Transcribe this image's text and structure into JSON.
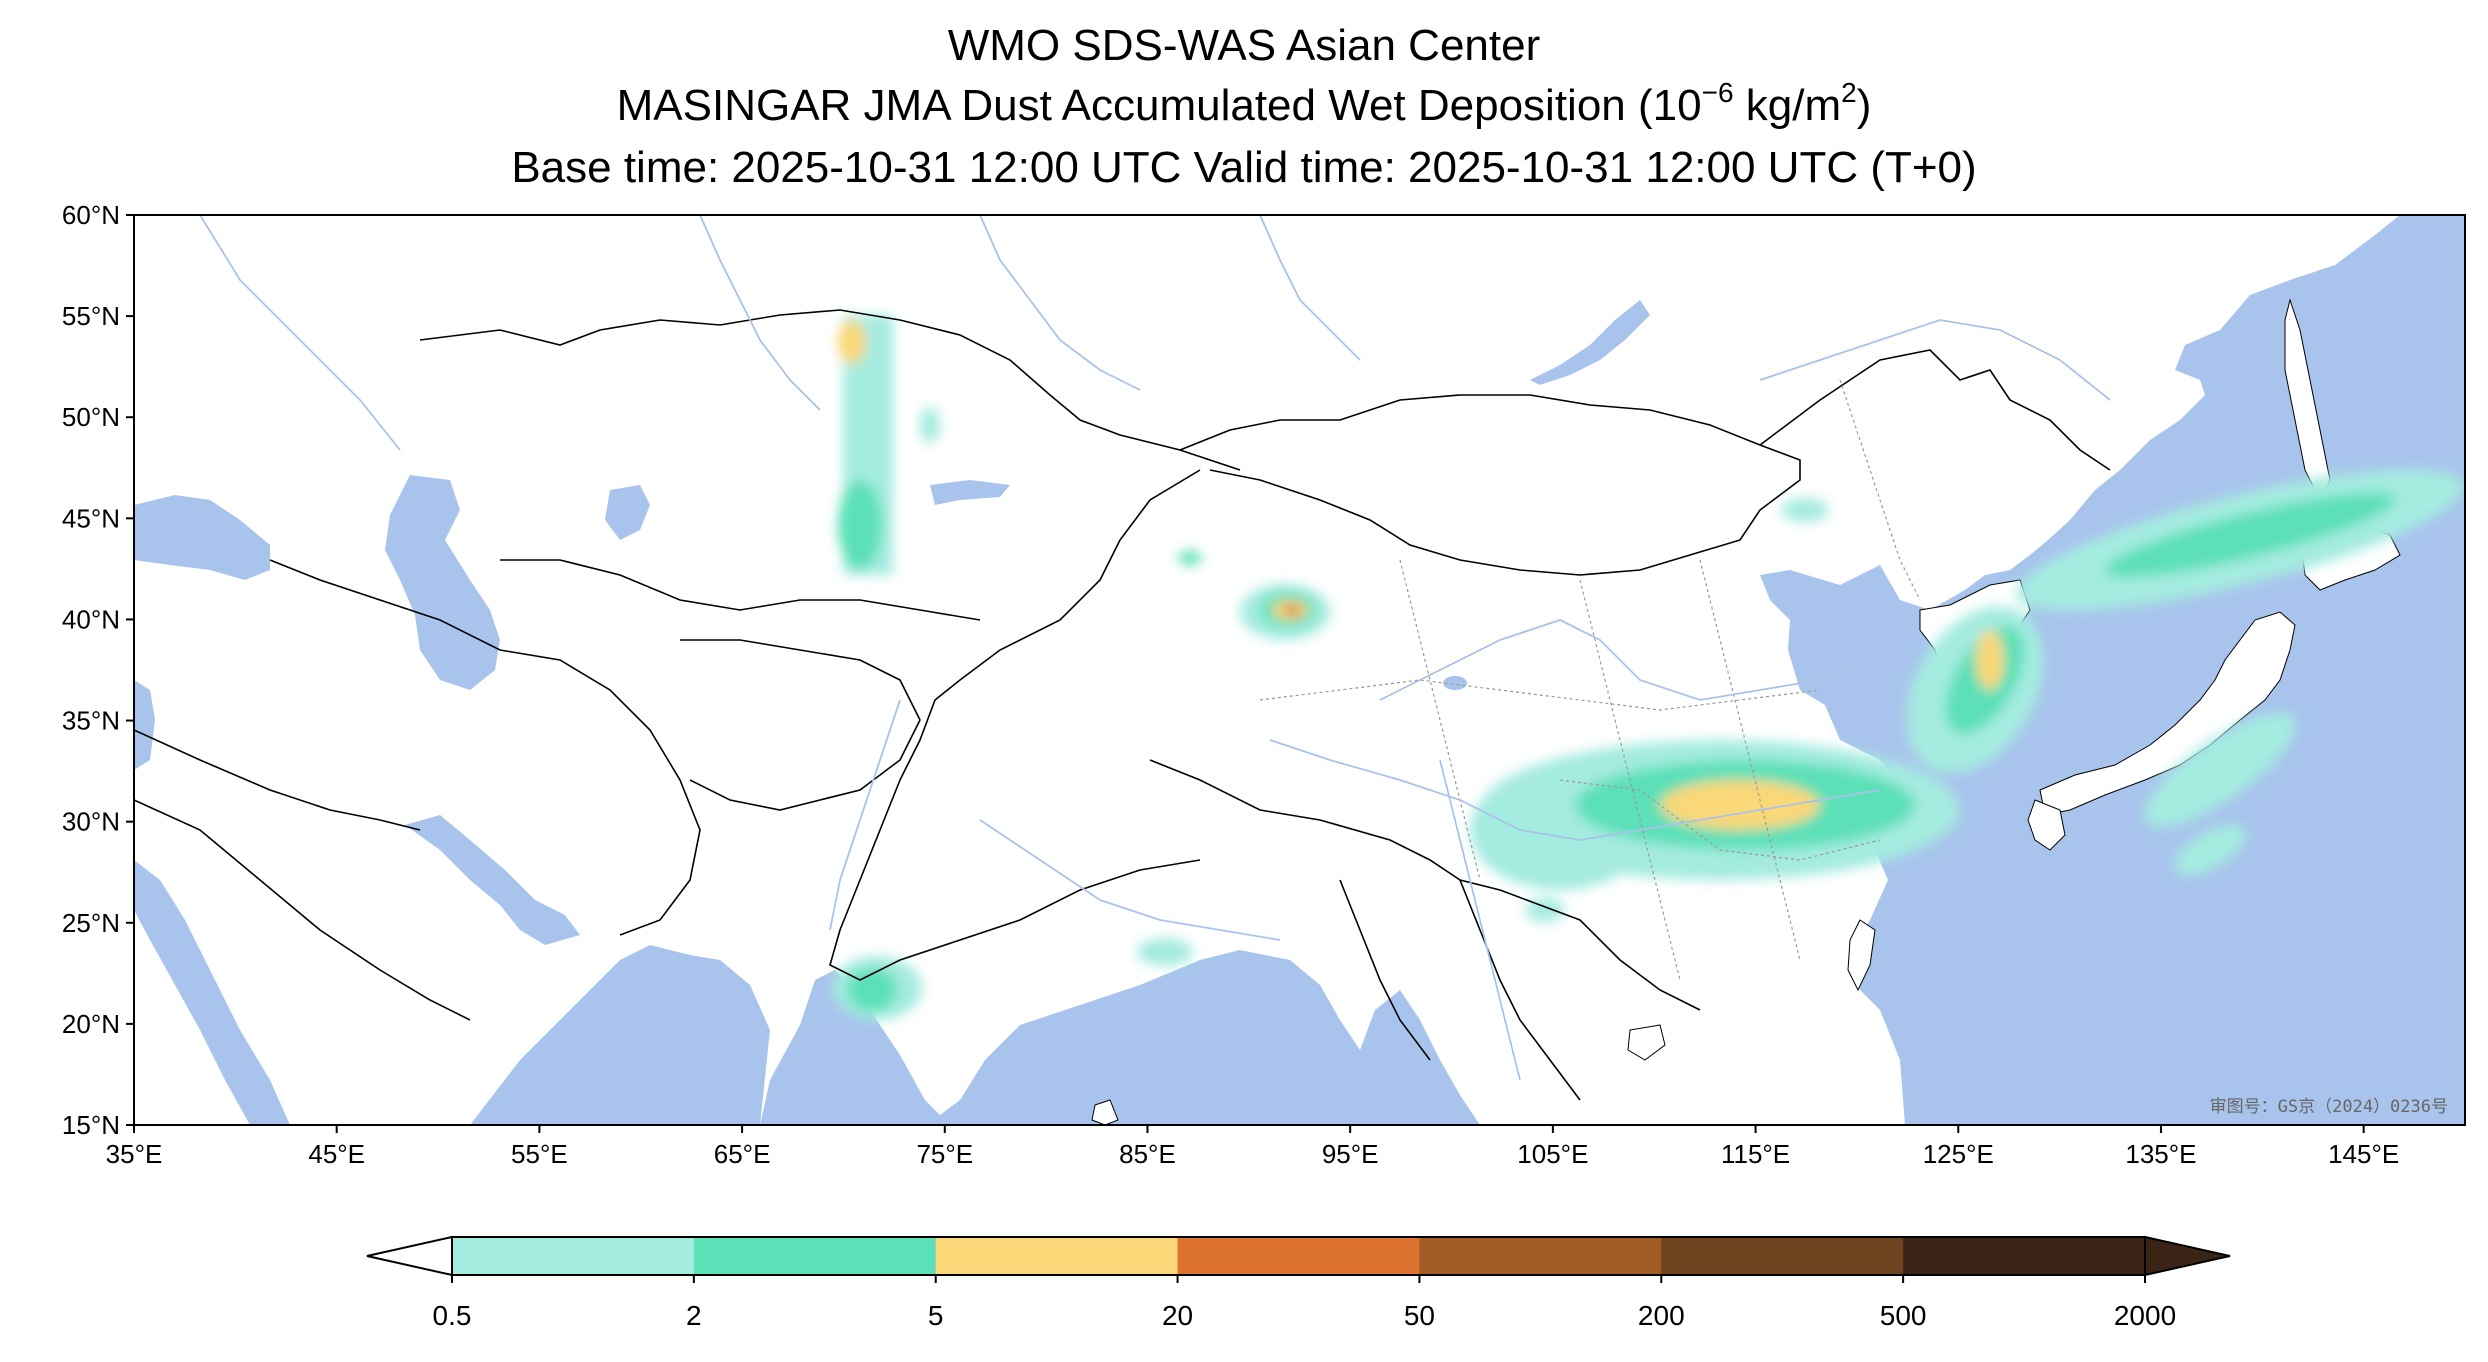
{
  "titles": {
    "line1": "WMO SDS-WAS Asian Center",
    "line2_prefix": "MASINGAR JMA Dust Accumulated Wet Deposition (10",
    "line2_exp": "−6",
    "line2_mid": " kg/m",
    "line2_exp2": "2",
    "line2_suffix": ")",
    "line3": "Base time: 2025-10-31 12:00 UTC Valid time: 2025-10-31 12:00 UTC (T+0)"
  },
  "map": {
    "lon_range": [
      35,
      150
    ],
    "lat_range": [
      15,
      60
    ],
    "x_ticks": [
      "35°E",
      "45°E",
      "55°E",
      "65°E",
      "75°E",
      "85°E",
      "95°E",
      "105°E",
      "115°E",
      "125°E",
      "135°E",
      "145°E"
    ],
    "y_ticks": [
      "60°N",
      "55°N",
      "50°N",
      "45°N",
      "40°N",
      "35°N",
      "30°N",
      "25°N",
      "20°N",
      "15°N"
    ],
    "ocean_color": "#a8c4ec",
    "land_color": "#ffffff",
    "watermark": "审图号：GS京（2024）0236号"
  },
  "colorbar": {
    "levels": [
      "0.5",
      "2",
      "5",
      "20",
      "50",
      "200",
      "500",
      "2000"
    ],
    "colors": [
      "#a4ebe0",
      "#5ce0b8",
      "#fad777",
      "#dd722e",
      "#a15c24",
      "#6e4420",
      "#3b2416"
    ],
    "extend": "both"
  }
}
